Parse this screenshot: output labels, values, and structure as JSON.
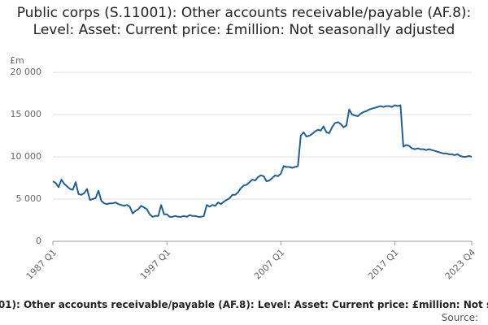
{
  "chart_data": {
    "type": "line",
    "title": "Public corps (S.11001): Other accounts receivable/payable (AF.8): Level: Asset: Current price: £million: Not seasonally adjusted",
    "y_unit_label": "£m",
    "source_label": "Source:",
    "categories": [
      "1987 Q1",
      null,
      null,
      null,
      null,
      null,
      null,
      null,
      null,
      null,
      null,
      null,
      null,
      null,
      null,
      null,
      null,
      null,
      null,
      null,
      null,
      null,
      null,
      null,
      null,
      null,
      null,
      null,
      null,
      null,
      null,
      null,
      null,
      null,
      null,
      null,
      null,
      null,
      null,
      null,
      "1997 Q1",
      null,
      null,
      null,
      null,
      null,
      null,
      null,
      null,
      null,
      null,
      null,
      null,
      null,
      null,
      null,
      null,
      null,
      null,
      null,
      null,
      null,
      null,
      null,
      null,
      null,
      null,
      null,
      null,
      null,
      null,
      null,
      null,
      null,
      null,
      null,
      null,
      null,
      null,
      null,
      "2007 Q1",
      null,
      null,
      null,
      null,
      null,
      null,
      null,
      null,
      null,
      null,
      null,
      null,
      null,
      null,
      null,
      null,
      null,
      null,
      null,
      null,
      null,
      null,
      null,
      null,
      null,
      null,
      null,
      null,
      null,
      null,
      null,
      null,
      null,
      null,
      null,
      null,
      null,
      null,
      null,
      "2017 Q1",
      null,
      null,
      null,
      null,
      null,
      null,
      null,
      null,
      null,
      null,
      null,
      null,
      null,
      null,
      null,
      null,
      null,
      null,
      null,
      null,
      null,
      null,
      null,
      null,
      null,
      null,
      "2023 Q4"
    ],
    "series": [
      {
        "color": "#206095",
        "values": [
          7100,
          6900,
          6400,
          7300,
          6800,
          6500,
          6200,
          6100,
          7000,
          5600,
          5500,
          5700,
          6200,
          4900,
          5000,
          5100,
          6000,
          4800,
          4500,
          4400,
          4500,
          4500,
          4600,
          4400,
          4300,
          4200,
          4300,
          4100,
          3300,
          3600,
          3800,
          4200,
          4000,
          3800,
          3200,
          2900,
          3000,
          3000,
          4300,
          3200,
          3200,
          2900,
          2900,
          3000,
          2900,
          2900,
          3000,
          2900,
          3100,
          3000,
          3000,
          2900,
          2900,
          3000,
          4300,
          4100,
          4300,
          4200,
          4600,
          4400,
          4700,
          4900,
          5100,
          5500,
          5500,
          5800,
          6300,
          6600,
          6700,
          7000,
          7300,
          7200,
          7600,
          7800,
          7700,
          7100,
          7200,
          7500,
          7800,
          7700,
          8000,
          8900,
          8800,
          8800,
          8700,
          8800,
          8900,
          12500,
          12900,
          12400,
          12500,
          12700,
          13000,
          13200,
          13100,
          13600,
          12900,
          12800,
          13500,
          14000,
          14100,
          13900,
          13500,
          13700,
          15600,
          15000,
          14900,
          14800,
          15100,
          15300,
          15400,
          15600,
          15700,
          15800,
          15900,
          16000,
          15900,
          16000,
          16000,
          15900,
          16100,
          16000,
          16100,
          11200,
          11400,
          11300,
          11000,
          10900,
          11000,
          10900,
          10900,
          10800,
          10900,
          10800,
          10700,
          10600,
          10500,
          10400,
          10400,
          10300,
          10300,
          10200,
          10300,
          10100,
          10000,
          10000,
          10100,
          10000
        ]
      }
    ],
    "ylim": [
      0,
      20000
    ],
    "yticks": [
      0,
      {
        "value": 5000,
        "label": "5 000"
      },
      {
        "value": 10000,
        "label": "10 000"
      },
      {
        "value": 15000,
        "label": "15 000"
      },
      {
        "value": 20000,
        "label": "20 000"
      }
    ],
    "grid": true
  }
}
